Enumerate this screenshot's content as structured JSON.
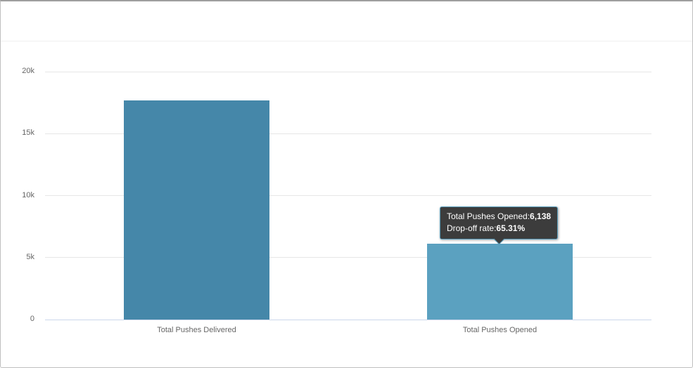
{
  "colors": {
    "page_background": "#ffffff",
    "window_border": "#bfbfbf",
    "header_divider": "#f0f0f0",
    "gridline": "#e6e6e6",
    "x_axis_line": "#ccd6eb",
    "axis_label": "#666666",
    "bar_delivered": "#4587a9",
    "bar_opened_hover": "#5ba1c0",
    "tooltip_background": "#3c3c3c",
    "tooltip_border": "#5ba1c0",
    "tooltip_text": "#ffffff"
  },
  "chart_data": {
    "type": "bar",
    "title": "",
    "xlabel": "",
    "ylabel": "",
    "categories": [
      "Total Pushes Delivered",
      "Total Pushes Opened"
    ],
    "values": [
      17694,
      6138
    ],
    "bar_colors": [
      "#4587a9",
      "#5ba1c0"
    ],
    "hovered_category": "Total Pushes Opened",
    "ylim": [
      0,
      20000
    ],
    "yticks": [
      {
        "value": 0,
        "label": "0"
      },
      {
        "value": 5000,
        "label": "5k"
      },
      {
        "value": 10000,
        "label": "10k"
      },
      {
        "value": 15000,
        "label": "15k"
      },
      {
        "value": 20000,
        "label": "20k"
      }
    ],
    "grid": true,
    "legend": false
  },
  "tooltip": {
    "lines": [
      {
        "label": "Total Pushes Opened:",
        "value": "6,138"
      },
      {
        "label": "Drop-off rate:",
        "value": "65.31%"
      }
    ]
  }
}
